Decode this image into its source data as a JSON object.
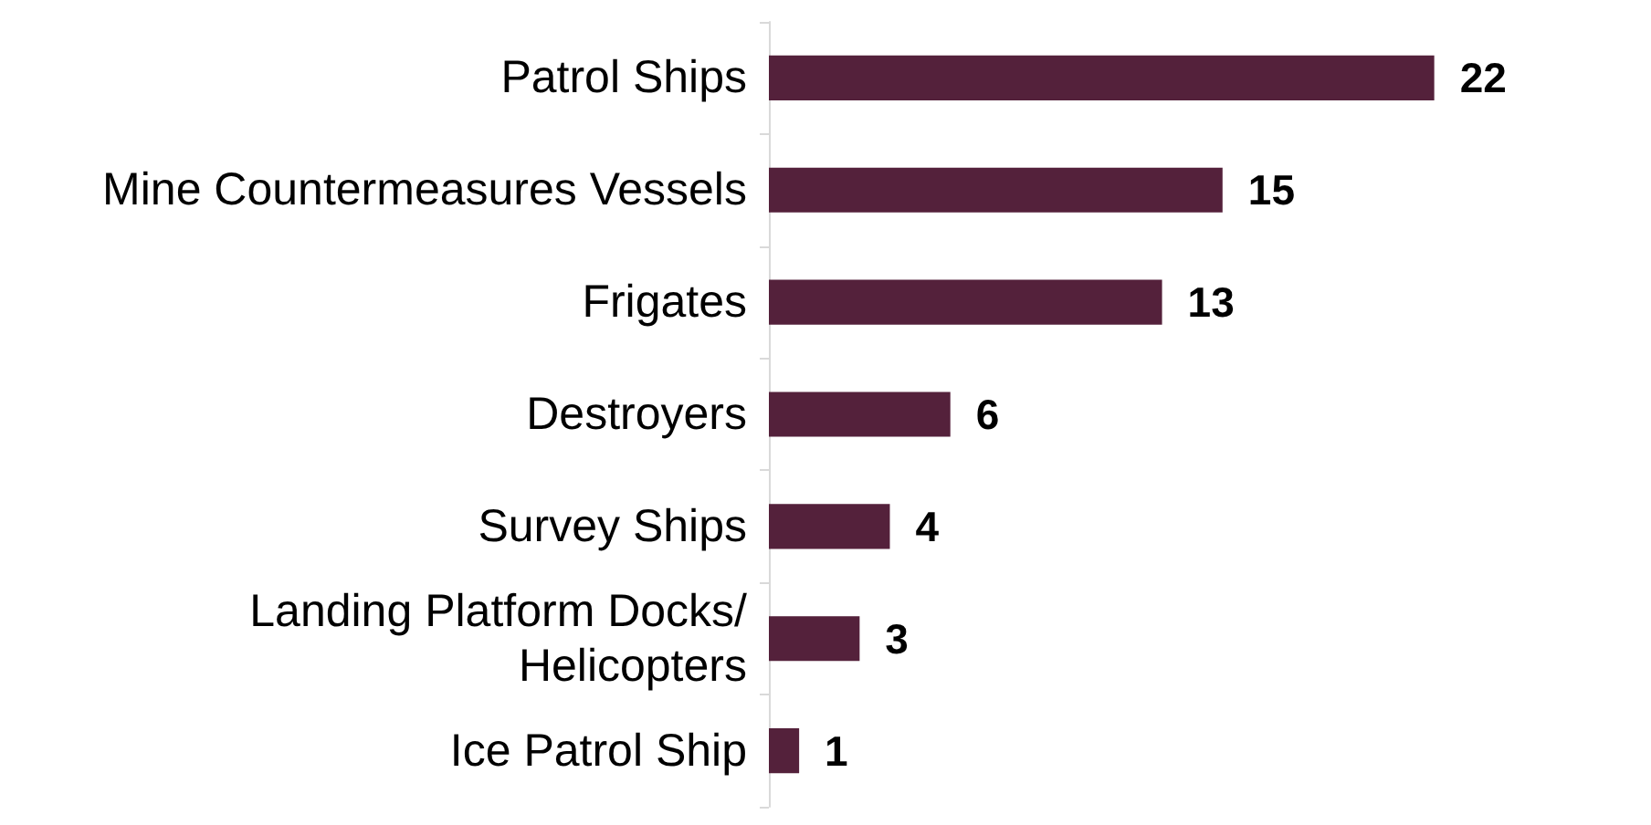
{
  "chart_data": {
    "type": "bar",
    "orientation": "horizontal",
    "categories": [
      "Patrol Ships",
      "Mine Countermeasures Vessels",
      "Frigates",
      "Destroyers",
      "Survey Ships",
      "Landing Platform Docks/Helicopters",
      "Ice Patrol Ship"
    ],
    "values": [
      22,
      15,
      13,
      6,
      4,
      3,
      1
    ],
    "color": "#54213b",
    "data_labels": true
  }
}
